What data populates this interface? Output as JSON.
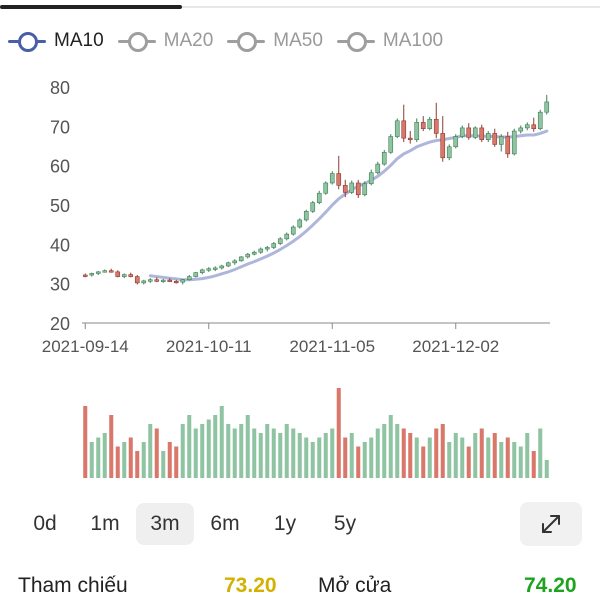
{
  "legend": [
    {
      "label": "MA10",
      "color": "#4a5ea8",
      "active": true
    },
    {
      "label": "MA20",
      "color": "#9e9e9e",
      "active": false
    },
    {
      "label": "MA50",
      "color": "#9e9e9e",
      "active": false
    },
    {
      "label": "MA100",
      "color": "#9e9e9e",
      "active": false
    }
  ],
  "colors": {
    "up": "#8fc4a2",
    "down": "#d9776a",
    "ma10": "#aeb6dc",
    "axis": "#888888",
    "text": "#555555"
  },
  "chart_data": {
    "type": "candlestick",
    "y_ticks": [
      "80",
      "70",
      "60",
      "50",
      "40",
      "30",
      "20"
    ],
    "ylim": [
      20,
      80
    ],
    "x_tick_labels": [
      "2021-09-14",
      "2021-10-11",
      "2021-11-05",
      "2021-12-02"
    ],
    "x_tick_index": [
      0,
      19,
      38,
      57
    ],
    "candles": [
      [
        32.0,
        32.6,
        31.6,
        32.2,
        "down",
        0.8
      ],
      [
        32.2,
        32.8,
        31.8,
        32.6,
        "up",
        0.4
      ],
      [
        32.6,
        33.2,
        32.2,
        33.0,
        "up",
        0.45
      ],
      [
        33.0,
        33.6,
        32.8,
        33.3,
        "up",
        0.5
      ],
      [
        33.3,
        33.8,
        32.8,
        33.0,
        "down",
        0.7
      ],
      [
        33.0,
        33.4,
        31.6,
        31.8,
        "down",
        0.35
      ],
      [
        31.8,
        32.6,
        31.4,
        32.3,
        "up",
        0.4
      ],
      [
        32.3,
        32.8,
        31.6,
        31.8,
        "down",
        0.45
      ],
      [
        31.8,
        32.2,
        29.8,
        30.2,
        "down",
        0.3
      ],
      [
        30.2,
        31.0,
        29.8,
        30.7,
        "up",
        0.4
      ],
      [
        30.7,
        31.4,
        30.2,
        31.0,
        "up",
        0.6
      ],
      [
        31.0,
        31.6,
        30.4,
        30.6,
        "down",
        0.55
      ],
      [
        30.6,
        31.2,
        30.2,
        30.9,
        "up",
        0.3
      ],
      [
        30.9,
        31.4,
        30.4,
        30.6,
        "down",
        0.4
      ],
      [
        30.6,
        31.0,
        30.0,
        30.4,
        "down",
        0.35
      ],
      [
        30.4,
        31.2,
        29.8,
        31.0,
        "up",
        0.6
      ],
      [
        31.0,
        32.2,
        30.8,
        31.8,
        "up",
        0.7
      ],
      [
        31.8,
        33.0,
        31.6,
        32.8,
        "up",
        0.55
      ],
      [
        32.8,
        33.8,
        32.4,
        33.5,
        "up",
        0.6
      ],
      [
        33.5,
        34.2,
        33.0,
        33.8,
        "up",
        0.65
      ],
      [
        33.8,
        34.4,
        33.2,
        34.0,
        "up",
        0.7
      ],
      [
        34.0,
        34.8,
        33.6,
        34.5,
        "up",
        0.8
      ],
      [
        34.5,
        35.6,
        34.2,
        35.3,
        "up",
        0.6
      ],
      [
        35.3,
        36.2,
        34.8,
        35.8,
        "up",
        0.55
      ],
      [
        35.8,
        37.0,
        35.6,
        36.8,
        "up",
        0.6
      ],
      [
        36.8,
        37.8,
        36.4,
        37.5,
        "up",
        0.7
      ],
      [
        37.5,
        38.4,
        37.2,
        38.0,
        "up",
        0.55
      ],
      [
        38.0,
        39.2,
        37.6,
        38.8,
        "up",
        0.5
      ],
      [
        38.8,
        39.6,
        38.2,
        39.2,
        "up",
        0.6
      ],
      [
        39.2,
        40.6,
        38.8,
        40.2,
        "up",
        0.55
      ],
      [
        40.2,
        41.8,
        39.8,
        41.4,
        "up",
        0.5
      ],
      [
        41.4,
        43.0,
        41.0,
        42.6,
        "up",
        0.6
      ],
      [
        42.6,
        44.8,
        42.2,
        44.4,
        "up",
        0.55
      ],
      [
        44.4,
        46.6,
        44.0,
        46.2,
        "up",
        0.5
      ],
      [
        46.2,
        48.8,
        45.8,
        48.4,
        "up",
        0.45
      ],
      [
        48.4,
        51.0,
        48.0,
        50.6,
        "up",
        0.4
      ],
      [
        50.6,
        53.6,
        50.2,
        53.0,
        "up",
        0.45
      ],
      [
        53.0,
        56.0,
        52.6,
        55.6,
        "up",
        0.5
      ],
      [
        55.6,
        58.6,
        55.2,
        58.0,
        "up",
        0.55
      ],
      [
        58.0,
        62.5,
        54.0,
        55.0,
        "down",
        1.0
      ],
      [
        55.0,
        56.4,
        52.0,
        53.2,
        "down",
        0.45
      ],
      [
        53.2,
        56.2,
        52.8,
        55.6,
        "up",
        0.5
      ],
      [
        55.6,
        56.4,
        51.8,
        52.6,
        "down",
        0.35
      ],
      [
        52.6,
        56.0,
        52.2,
        55.4,
        "up",
        0.4
      ],
      [
        55.4,
        59.0,
        55.0,
        58.2,
        "up",
        0.45
      ],
      [
        58.2,
        61.0,
        57.8,
        60.4,
        "up",
        0.55
      ],
      [
        60.4,
        64.0,
        60.0,
        63.4,
        "up",
        0.6
      ],
      [
        63.4,
        68.0,
        63.0,
        67.4,
        "up",
        0.7
      ],
      [
        67.4,
        72.0,
        67.0,
        71.4,
        "up",
        0.6
      ],
      [
        71.4,
        75.5,
        66.0,
        67.0,
        "down",
        0.55
      ],
      [
        67.0,
        68.8,
        65.6,
        66.6,
        "down",
        0.5
      ],
      [
        66.6,
        72.0,
        66.0,
        71.0,
        "up",
        0.45
      ],
      [
        71.0,
        72.6,
        68.8,
        69.4,
        "down",
        0.35
      ],
      [
        69.4,
        72.4,
        69.0,
        71.8,
        "up",
        0.45
      ],
      [
        71.8,
        76.0,
        67.0,
        68.2,
        "down",
        0.55
      ],
      [
        68.2,
        72.6,
        61.0,
        62.0,
        "down",
        0.6
      ],
      [
        62.0,
        65.4,
        61.4,
        64.8,
        "up",
        0.4
      ],
      [
        64.8,
        68.0,
        64.4,
        67.4,
        "up",
        0.5
      ],
      [
        67.4,
        70.2,
        67.0,
        69.6,
        "up",
        0.45
      ],
      [
        69.6,
        70.8,
        66.6,
        67.2,
        "down",
        0.35
      ],
      [
        67.2,
        70.0,
        66.8,
        69.6,
        "up",
        0.5
      ],
      [
        69.6,
        70.4,
        66.0,
        66.6,
        "down",
        0.55
      ],
      [
        66.6,
        68.8,
        66.0,
        68.2,
        "up",
        0.45
      ],
      [
        68.2,
        69.4,
        64.8,
        65.4,
        "down",
        0.5
      ],
      [
        65.4,
        68.0,
        63.6,
        67.4,
        "up",
        0.4
      ],
      [
        67.4,
        68.6,
        62.0,
        63.0,
        "down",
        0.45
      ],
      [
        63.0,
        69.4,
        62.6,
        68.8,
        "up",
        0.4
      ],
      [
        68.8,
        70.2,
        68.2,
        69.6,
        "up",
        0.35
      ],
      [
        69.6,
        71.0,
        69.0,
        70.4,
        "up",
        0.5
      ],
      [
        70.4,
        72.2,
        68.6,
        69.4,
        "down",
        0.3
      ],
      [
        69.4,
        74.2,
        69.0,
        73.6,
        "up",
        0.55
      ],
      [
        73.6,
        78.0,
        73.0,
        76.2,
        "up",
        0.2
      ]
    ],
    "ma10": [
      null,
      null,
      null,
      null,
      null,
      null,
      null,
      null,
      null,
      null,
      32.0,
      31.8,
      31.6,
      31.4,
      31.2,
      31.0,
      31.0,
      31.1,
      31.3,
      31.6,
      32.0,
      32.5,
      33.0,
      33.6,
      34.3,
      35.0,
      35.6,
      36.3,
      37.0,
      37.8,
      38.7,
      39.7,
      40.8,
      42.0,
      43.4,
      44.9,
      46.5,
      48.2,
      50.0,
      51.6,
      52.8,
      53.9,
      54.8,
      55.5,
      56.3,
      57.3,
      58.6,
      60.1,
      61.8,
      63.0,
      63.8,
      64.8,
      65.4,
      66.0,
      66.4,
      66.6,
      66.9,
      67.2,
      67.6,
      67.6,
      67.6,
      67.5,
      67.5,
      67.4,
      67.3,
      67.3,
      67.4,
      67.6,
      67.8,
      67.8,
      68.2,
      68.8
    ]
  },
  "range_buttons": [
    "0d",
    "1m",
    "3m",
    "6m",
    "1y",
    "5y"
  ],
  "active_range": "3m",
  "stats": {
    "reference_label": "Tham chiếu",
    "reference_value": "73.20",
    "reference_color": "#d4b000",
    "open_label": "Mở cửa",
    "open_value": "74.20",
    "open_color": "#1ea31e"
  }
}
